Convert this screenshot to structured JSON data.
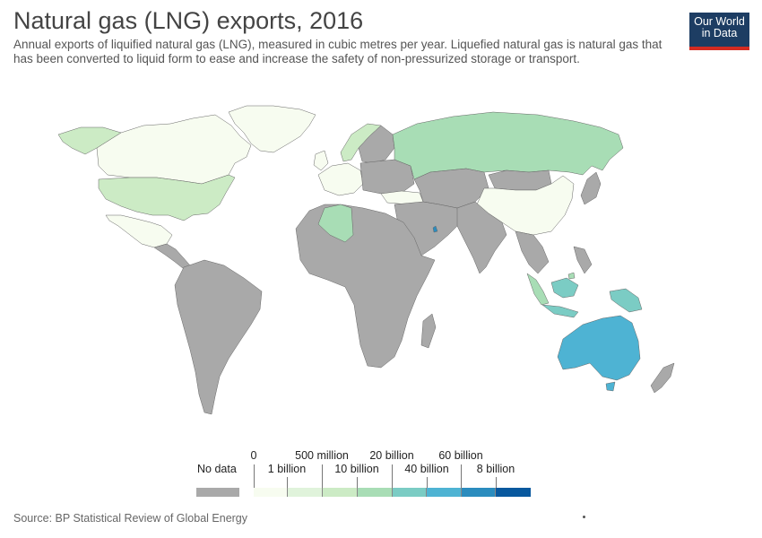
{
  "title": "Natural gas (LNG) exports, 2016",
  "subtitle": "Annual exports of liquified natural gas (LNG), measured in cubic metres per year. Liquefied natural gas is natural gas that has been converted to liquid form to ease and increase the safety of non-pressurized storage or transport.",
  "logo": {
    "line1": "Our World",
    "line2": "in Data"
  },
  "source": "Source: BP Statistical Review of Global Energy",
  "colors": {
    "no_data": "#a9a9a9",
    "bins": [
      "#f7fcf0",
      "#e0f3db",
      "#ccebc5",
      "#a8ddb5",
      "#7bccc4",
      "#4eb3d3",
      "#2b8cbe",
      "#08589e"
    ],
    "logo_bg": "#1d3d63",
    "logo_accent": "#d42b21"
  },
  "legend": {
    "no_data_label": "No data",
    "top_labels": [
      "0",
      "500 million",
      "20 billion",
      "60 billion"
    ],
    "bottom_labels": [
      "1 billion",
      "10 billion",
      "40 billion",
      "8 billion"
    ]
  },
  "map_data": {
    "United States": "1 billion–10 billion",
    "Canada": "0–500 million",
    "Mexico": "0–500 million",
    "Greenland": "0–500 million",
    "Russia": "10 billion–20 billion",
    "China": "0–500 million",
    "Algeria": "10 billion–20 billion",
    "Norway": "1 billion–10 billion",
    "Australia": "40 billion–60 billion",
    "Indonesia": "20 billion–40 billion",
    "Papua New Guinea": "20 billion–40 billion",
    "Western Europe": "0–500 million",
    "Turkey": "0–500 million"
  }
}
